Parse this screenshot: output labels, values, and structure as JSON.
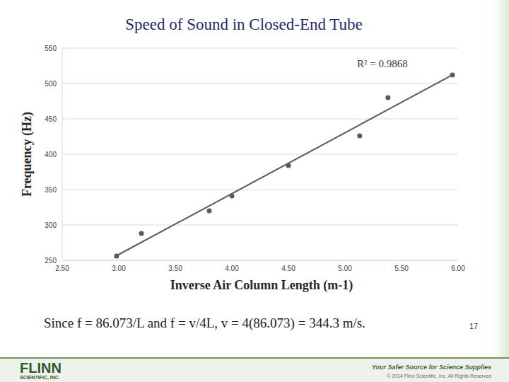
{
  "chart_data": {
    "type": "scatter",
    "title": "Speed of Sound in Closed-End Tube",
    "x_label": "Inverse Air Column Length (m-1)",
    "y_label": "Frequency (Hz)",
    "annotation": "R² = 0.9868",
    "x": [
      2.98,
      3.2,
      3.8,
      4.0,
      4.5,
      5.13,
      5.38,
      5.95
    ],
    "values": [
      256,
      288,
      320,
      341,
      384,
      426,
      480,
      512
    ],
    "color": "#595959",
    "marker": "circle",
    "trendline": {
      "x": [
        2.98,
        5.95
      ],
      "values": [
        256.5,
        512.1
      ],
      "color": "#595959"
    },
    "xlim": [
      2.5,
      6.0
    ],
    "xticks": [
      {
        "value": 2.5,
        "label": "2.50"
      },
      {
        "value": 3.0,
        "label": "3.00"
      },
      {
        "value": 3.5,
        "label": "3.50"
      },
      {
        "value": 4.0,
        "label": "4.00"
      },
      {
        "value": 4.5,
        "label": "4.50"
      },
      {
        "value": 5.0,
        "label": "5.00"
      },
      {
        "value": 5.5,
        "label": "5.50"
      },
      {
        "value": 6.0,
        "label": "6.00"
      }
    ],
    "ylim": [
      250,
      550
    ],
    "yticks": [
      250,
      300,
      350,
      400,
      450,
      500,
      550
    ],
    "grid": true
  },
  "slide": {
    "equation": "Since f = 86.073/L and f = v/4L, v = 4(86.073) = 344.3 m/s.",
    "page_number": "17",
    "logo": "FLINN",
    "logo_sub": "SCIENTIFIC, INC",
    "tagline": "Your Safer Source for Science Supplies",
    "copyright": "© 2014 Flinn Scientific, Inc. All Rights Reserved"
  }
}
